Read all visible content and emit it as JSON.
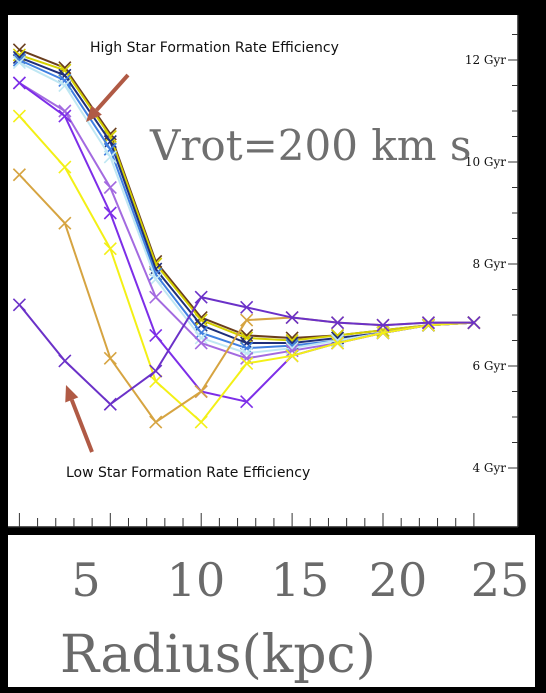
{
  "chart_data": {
    "type": "line",
    "x": [
      0,
      2.5,
      5,
      7.5,
      10,
      12.5,
      15,
      17.5,
      20,
      22.5,
      25
    ],
    "series": [
      {
        "color": "#6a3e1e",
        "values": [
          12.2,
          11.85,
          10.55,
          8.05,
          6.95,
          6.6,
          6.55,
          6.6,
          6.7,
          6.8,
          6.85
        ]
      },
      {
        "color": "#d4d000",
        "values": [
          12.1,
          11.8,
          10.5,
          8.0,
          6.9,
          6.55,
          6.5,
          6.6,
          6.7,
          6.8,
          6.85
        ]
      },
      {
        "color": "#1f2f7a",
        "values": [
          12.05,
          11.7,
          10.4,
          7.9,
          6.8,
          6.45,
          6.45,
          6.55,
          6.65,
          6.8,
          6.85
        ]
      },
      {
        "color": "#3f7fe0",
        "values": [
          12.0,
          11.6,
          10.25,
          7.8,
          6.65,
          6.35,
          6.4,
          6.5,
          6.65,
          6.8,
          6.85
        ]
      },
      {
        "color": "#bfe7f3",
        "values": [
          11.95,
          11.5,
          10.1,
          7.7,
          6.55,
          6.25,
          6.35,
          6.5,
          6.65,
          6.8,
          6.85
        ]
      },
      {
        "color": "#a36ae0",
        "values": [
          11.55,
          11.0,
          9.5,
          7.35,
          6.45,
          6.15,
          6.3,
          6.45,
          6.65,
          6.8,
          6.85
        ]
      },
      {
        "color": "#7d2ee8",
        "values": [
          11.55,
          10.9,
          9.0,
          6.6,
          5.5,
          5.3,
          6.2,
          6.45,
          6.65,
          6.8,
          6.85
        ]
      },
      {
        "color": "#f3f016",
        "values": [
          10.9,
          9.9,
          8.3,
          5.7,
          4.9,
          6.05,
          6.2,
          6.45,
          6.65,
          6.8,
          6.85
        ]
      },
      {
        "color": "#d6a441",
        "values": [
          9.75,
          8.8,
          6.15,
          4.9,
          5.5,
          6.9,
          6.95,
          6.85,
          6.8,
          6.85,
          6.85
        ]
      },
      {
        "color": "#6b31c8",
        "values": [
          7.2,
          6.1,
          5.25,
          5.9,
          7.35,
          7.15,
          6.95,
          6.85,
          6.8,
          6.85,
          6.85
        ]
      }
    ],
    "xlabel": "Radius(kpc)",
    "ylabel": "",
    "xticks": [
      "5",
      "10",
      "15",
      "20",
      "25"
    ],
    "yticks": [
      "4 Gyr",
      "6 Gyr",
      "8 Gyr",
      "10 Gyr",
      "12 Gyr"
    ],
    "xlim": [
      0,
      25.5
    ],
    "ylim": [
      3.5,
      12.8
    ],
    "annotations": [
      {
        "text": "Vrot=200 km s"
      },
      {
        "text": "High Star Formation Rate Efficiency"
      },
      {
        "text": "Low Star Formation Rate Efficiency"
      }
    ],
    "grid": false
  }
}
